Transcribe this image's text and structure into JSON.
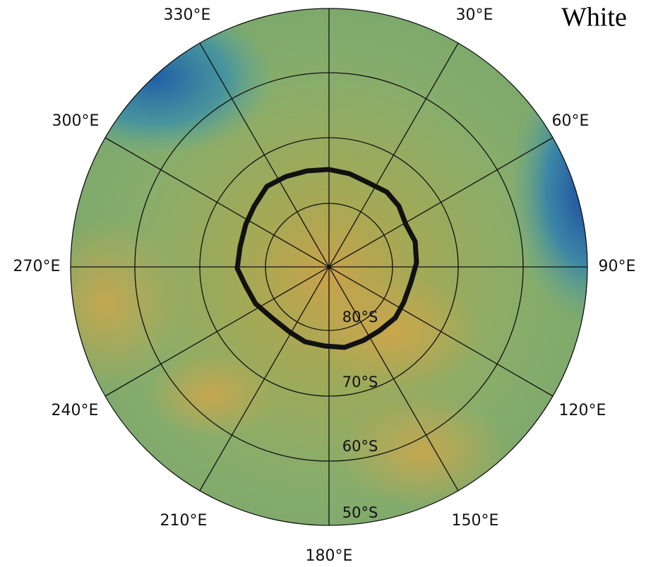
{
  "map": {
    "corner_text": "White",
    "longitude_labels": [
      "330°E",
      "30°E",
      "60°E",
      "90°E",
      "120°E",
      "150°E",
      "180°E",
      "210°E",
      "240°E",
      "270°E",
      "300°E"
    ],
    "latitude_labels": [
      "80°S",
      "70°S",
      "60°S",
      "50°S"
    ]
  }
}
